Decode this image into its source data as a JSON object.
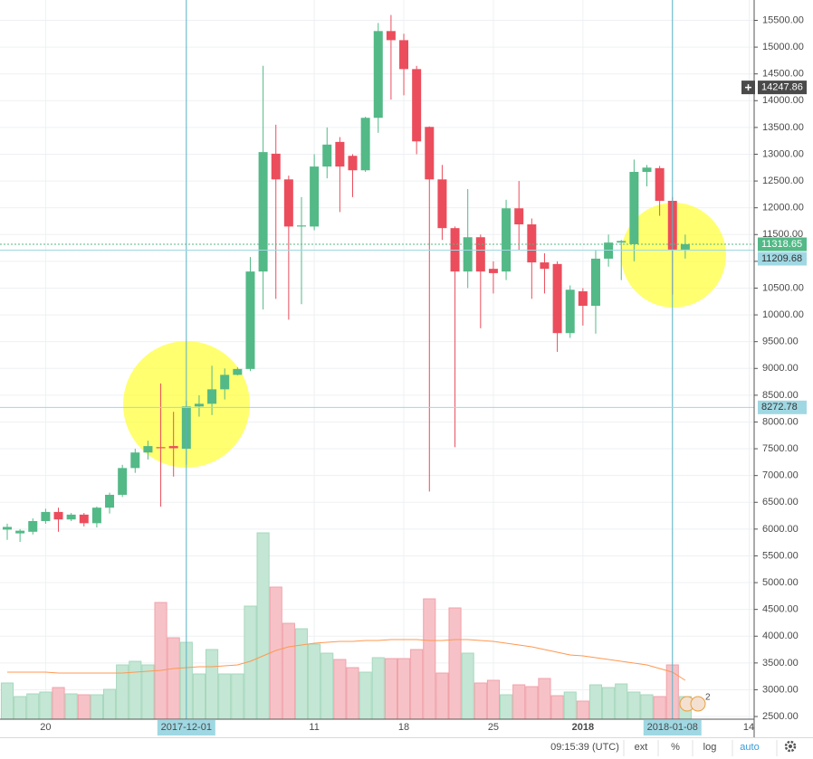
{
  "chart_data": {
    "type": "candlestick",
    "categories": [
      "2017-11-17",
      "2017-11-18",
      "2017-11-19",
      "2017-11-20",
      "2017-11-21",
      "2017-11-22",
      "2017-11-23",
      "2017-11-24",
      "2017-11-25",
      "2017-11-26",
      "2017-11-27",
      "2017-11-28",
      "2017-11-29",
      "2017-11-30",
      "2017-12-01",
      "2017-12-02",
      "2017-12-03",
      "2017-12-04",
      "2017-12-05",
      "2017-12-06",
      "2017-12-07",
      "2017-12-08",
      "2017-12-09",
      "2017-12-10",
      "2017-12-11",
      "2017-12-12",
      "2017-12-13",
      "2017-12-14",
      "2017-12-15",
      "2017-12-16",
      "2017-12-17",
      "2017-12-18",
      "2017-12-19",
      "2017-12-20",
      "2017-12-21",
      "2017-12-22",
      "2017-12-23",
      "2017-12-24",
      "2017-12-25",
      "2017-12-26",
      "2017-12-27",
      "2017-12-28",
      "2017-12-29",
      "2017-12-30",
      "2017-12-31",
      "2018-01-01",
      "2018-01-02",
      "2018-01-03",
      "2018-01-04",
      "2018-01-05",
      "2018-01-06",
      "2018-01-07",
      "2018-01-08",
      "2018-01-09"
    ],
    "open": [
      5990,
      5920,
      5950,
      6150,
      6320,
      6180,
      6270,
      6110,
      6400,
      6640,
      7140,
      7430,
      7530,
      7550,
      7500,
      8290,
      8340,
      8610,
      8880,
      8990,
      10810,
      13010,
      12530,
      11650,
      11650,
      12770,
      13230,
      12970,
      12700,
      13680,
      15300,
      15130,
      14590,
      13510,
      12530,
      11620,
      10810,
      11450,
      10860,
      10810,
      11990,
      11690,
      10980,
      10950,
      9660,
      10440,
      10170,
      11050,
      11350,
      11320,
      12670,
      12740,
      12130,
      11220
    ],
    "high": [
      6100,
      6000,
      6200,
      6380,
      6400,
      6300,
      6300,
      6420,
      6680,
      7200,
      7500,
      7650,
      8720,
      8190,
      8400,
      8500,
      9050,
      9000,
      9020,
      11080,
      14650,
      13550,
      12600,
      12200,
      13000,
      13500,
      13320,
      13000,
      13700,
      15450,
      15600,
      15250,
      14650,
      13520,
      12800,
      11650,
      12350,
      11500,
      11000,
      12150,
      12500,
      11800,
      11150,
      11000,
      10550,
      10500,
      11200,
      11500,
      11400,
      12900,
      12800,
      12780,
      12200,
      11500
    ],
    "low": [
      5800,
      5760,
      5900,
      6100,
      5950,
      6150,
      6050,
      6030,
      6290,
      6600,
      7050,
      7300,
      6420,
      6980,
      7200,
      8100,
      8130,
      8420,
      8870,
      8950,
      10100,
      10300,
      9910,
      10200,
      11580,
      12550,
      11920,
      12200,
      12670,
      13400,
      14020,
      14100,
      13000,
      6700,
      11400,
      7530,
      10500,
      9750,
      10400,
      10650,
      11200,
      10300,
      10400,
      9310,
      9570,
      9800,
      9650,
      10900,
      10650,
      11000,
      12400,
      11850,
      10380,
      11050
    ],
    "close": [
      6040,
      5970,
      6150,
      6320,
      6180,
      6270,
      6110,
      6400,
      6640,
      7140,
      7430,
      7550,
      7510,
      7510,
      8290,
      8340,
      8610,
      8880,
      8990,
      10810,
      13040,
      12530,
      11650,
      11670,
      12770,
      13180,
      12770,
      12700,
      13680,
      15300,
      15130,
      14590,
      13240,
      12530,
      11620,
      10810,
      11450,
      10810,
      10780,
      11990,
      11690,
      10980,
      10860,
      9660,
      10470,
      10170,
      11050,
      11350,
      11380,
      12670,
      12750,
      12130,
      11220,
      11320
    ],
    "volume": [
      40,
      25,
      28,
      30,
      35,
      28,
      27,
      27,
      33,
      60,
      64,
      60,
      129,
      90,
      85,
      50,
      77,
      50,
      50,
      125,
      206,
      146,
      106,
      100,
      83,
      73,
      66,
      57,
      52,
      68,
      67,
      67,
      77,
      133,
      51,
      123,
      73,
      40,
      43,
      27,
      38,
      36,
      45,
      26,
      30,
      20,
      38,
      35,
      39,
      30,
      27,
      25,
      60,
      25
    ],
    "volume_ma": [
      52,
      52,
      52,
      52,
      51,
      51,
      51,
      51,
      51,
      51,
      52,
      53,
      54,
      56,
      57,
      58,
      58,
      59,
      60,
      64,
      70,
      76,
      80,
      82,
      84,
      85,
      86,
      86,
      87,
      87,
      88,
      88,
      88,
      87,
      87,
      88,
      88,
      87,
      86,
      84,
      82,
      80,
      77,
      74,
      71,
      70,
      68,
      66,
      64,
      62,
      60,
      56,
      52,
      43
    ],
    "up_color": "#53b987",
    "down_color": "#eb4d5c",
    "volume_up_color": "#c4e6d4",
    "volume_down_color": "#f6c2c7",
    "volume_ma_color": "#ff9850",
    "ylim": [
      2450,
      15880
    ],
    "yticks": [
      {
        "value": 2500,
        "label": "2500.00"
      },
      {
        "value": 3000,
        "label": "3000.00"
      },
      {
        "value": 3500,
        "label": "3500.00"
      },
      {
        "value": 4000,
        "label": "4000.00"
      },
      {
        "value": 4500,
        "label": "4500.00"
      },
      {
        "value": 5000,
        "label": "5000.00"
      },
      {
        "value": 5500,
        "label": "5500.00"
      },
      {
        "value": 6000,
        "label": "6000.00"
      },
      {
        "value": 6500,
        "label": "6500.00"
      },
      {
        "value": 7000,
        "label": "7000.00"
      },
      {
        "value": 7500,
        "label": "7500.00"
      },
      {
        "value": 8000,
        "label": "8000.00"
      },
      {
        "value": 8500,
        "label": "8500.00"
      },
      {
        "value": 9000,
        "label": "9000.00"
      },
      {
        "value": 9500,
        "label": "9500.00"
      },
      {
        "value": 10000,
        "label": "10000.00"
      },
      {
        "value": 10500,
        "label": "10500.00"
      },
      {
        "value": 11000,
        "label": "11000.00"
      },
      {
        "value": 11500,
        "label": "11500.00"
      },
      {
        "value": 12000,
        "label": "12000.00"
      },
      {
        "value": 12500,
        "label": "12500.00"
      },
      {
        "value": 13000,
        "label": "13000.00"
      },
      {
        "value": 13500,
        "label": "13500.00"
      },
      {
        "value": 14000,
        "label": "14000.00"
      },
      {
        "value": 14500,
        "label": "14500.00"
      },
      {
        "value": 15000,
        "label": "15000.00"
      },
      {
        "value": 15500,
        "label": "15500.00"
      }
    ],
    "xticks": [
      {
        "value": "2017-11-20",
        "label": "20"
      },
      {
        "value": "2017-12-01",
        "label": "2017-12-01",
        "highlighted": true
      },
      {
        "value": "2017-12-11",
        "label": "11"
      },
      {
        "value": "2017-12-18",
        "label": "18"
      },
      {
        "value": "2017-12-25",
        "label": "25"
      },
      {
        "value": "2018-01-01",
        "label": "2018",
        "bold": true
      },
      {
        "value": "2018-01-08",
        "label": "2018-01-08",
        "highlighted": true
      },
      {
        "value": "2018-01-14",
        "label": "14"
      }
    ],
    "grid": true,
    "price_lines": [
      {
        "value": 14247.86,
        "color": "#4a4a4a",
        "text_color": "#ffffff",
        "line": false
      },
      {
        "value": 11318.65,
        "color": "#53b987",
        "text_color": "#ffffff",
        "line": true,
        "dashed": true
      },
      {
        "value": 11209.68,
        "color": "#9fd8e3",
        "text_color": "#333333",
        "line": true
      },
      {
        "value": 8272.78,
        "color": "#9fd8e3",
        "text_color": "#333333",
        "line": true
      }
    ]
  },
  "toolbar": {
    "time": "09:15:39 (UTC)",
    "buttons": [
      "ext",
      "%",
      "log",
      "auto"
    ],
    "active": "auto",
    "badge": "2"
  }
}
